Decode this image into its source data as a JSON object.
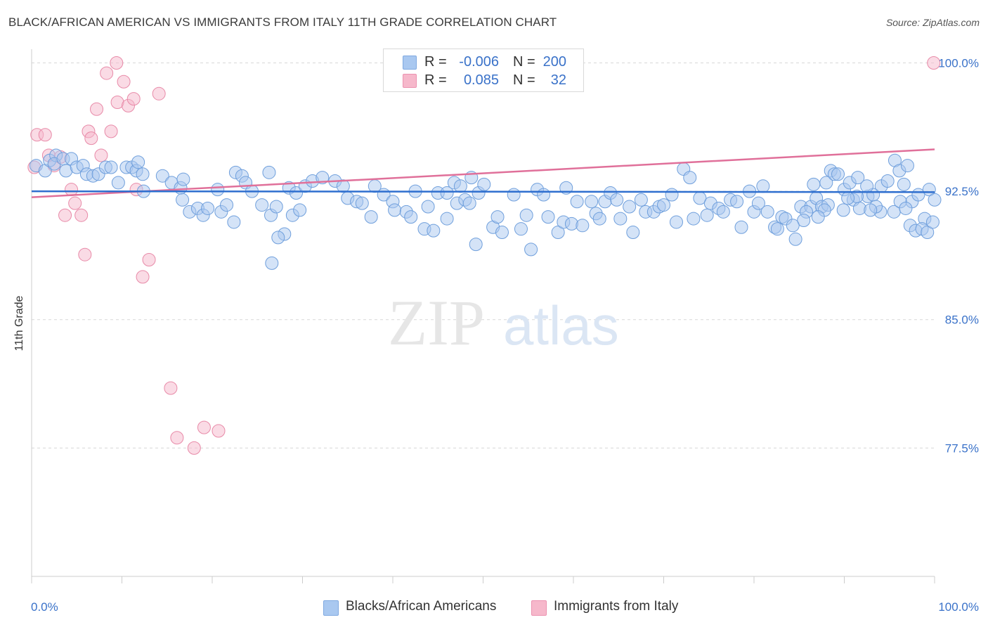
{
  "title": "BLACK/AFRICAN AMERICAN VS IMMIGRANTS FROM ITALY 11TH GRADE CORRELATION CHART",
  "source": "Source: ZipAtlas.com",
  "watermark": {
    "zip": "ZIP",
    "atlas": "atlas"
  },
  "legend": {
    "rows": [
      {
        "r_label": "R =",
        "r_value": "-0.006",
        "n_label": "N =",
        "n_value": "200",
        "color": "#a9c8f0"
      },
      {
        "r_label": "R =",
        "r_value": "0.085",
        "n_label": "N =",
        "n_value": "32",
        "color": "#f6b8cb"
      }
    ]
  },
  "colors": {
    "blue_fill": "#a9c8f0",
    "blue_stroke": "#6f9fdc",
    "blue_line": "#2f6fcf",
    "pink_fill": "#f6b8cb",
    "pink_stroke": "#e88aa8",
    "pink_line": "#e0709a",
    "axis_label": "#3a72c9",
    "grid": "#d8d8d8"
  },
  "chart_data": {
    "type": "scatter",
    "title": "BLACK/AFRICAN AMERICAN VS IMMIGRANTS FROM ITALY 11TH GRADE CORRELATION CHART",
    "xlabel": "",
    "ylabel": "11th Grade",
    "xlim": [
      0,
      100
    ],
    "ylim": [
      70.0,
      100.8
    ],
    "x_tick_labels": [
      "0.0%",
      "100.0%"
    ],
    "y_ticks": [
      77.5,
      85.0,
      92.5,
      100.0
    ],
    "y_tick_labels": [
      "77.5%",
      "85.0%",
      "92.5%",
      "100.0%"
    ],
    "grid": true,
    "legend_position": "top-center",
    "series": [
      {
        "name": "Blacks/African Americans",
        "trend": {
          "x": [
            0,
            100
          ],
          "y": [
            92.5,
            92.45
          ]
        },
        "points": [
          [
            0.5,
            94.0
          ],
          [
            1.5,
            93.7
          ],
          [
            2.0,
            94.3
          ],
          [
            2.7,
            94.6
          ],
          [
            2.5,
            94.1
          ],
          [
            3.5,
            94.4
          ],
          [
            3.8,
            93.7
          ],
          [
            4.4,
            94.4
          ],
          [
            5.0,
            93.9
          ],
          [
            5.7,
            94.0
          ],
          [
            6.1,
            93.5
          ],
          [
            6.8,
            93.4
          ],
          [
            7.4,
            93.5
          ],
          [
            8.2,
            93.9
          ],
          [
            8.8,
            93.9
          ],
          [
            9.6,
            93.0
          ],
          [
            10.5,
            93.9
          ],
          [
            11.1,
            93.9
          ],
          [
            11.6,
            93.7
          ],
          [
            11.8,
            94.2
          ],
          [
            12.3,
            93.5
          ],
          [
            12.4,
            92.5
          ],
          [
            14.5,
            93.4
          ],
          [
            15.5,
            93.0
          ],
          [
            16.5,
            92.7
          ],
          [
            16.8,
            93.2
          ],
          [
            16.7,
            92.0
          ],
          [
            17.5,
            91.3
          ],
          [
            18.4,
            91.5
          ],
          [
            19.0,
            91.1
          ],
          [
            19.5,
            91.5
          ],
          [
            21.0,
            91.3
          ],
          [
            21.6,
            91.7
          ],
          [
            20.6,
            92.6
          ],
          [
            22.6,
            93.6
          ],
          [
            23.3,
            93.4
          ],
          [
            23.7,
            93.0
          ],
          [
            22.4,
            90.7
          ],
          [
            24.4,
            92.5
          ],
          [
            25.5,
            91.7
          ],
          [
            26.5,
            91.1
          ],
          [
            27.1,
            91.6
          ],
          [
            26.3,
            93.6
          ],
          [
            28.5,
            92.7
          ],
          [
            29.3,
            92.4
          ],
          [
            28.0,
            90.0
          ],
          [
            27.3,
            89.8
          ],
          [
            26.6,
            88.3
          ],
          [
            28.9,
            91.1
          ],
          [
            29.7,
            91.4
          ],
          [
            30.3,
            92.8
          ],
          [
            31.1,
            93.1
          ],
          [
            32.2,
            93.3
          ],
          [
            33.6,
            93.1
          ],
          [
            34.5,
            92.8
          ],
          [
            35.0,
            92.1
          ],
          [
            36.0,
            91.9
          ],
          [
            36.6,
            91.8
          ],
          [
            37.6,
            91.0
          ],
          [
            38.0,
            92.8
          ],
          [
            39.0,
            92.3
          ],
          [
            40.0,
            91.9
          ],
          [
            40.2,
            91.4
          ],
          [
            41.5,
            91.3
          ],
          [
            42.5,
            92.5
          ],
          [
            42.0,
            91.0
          ],
          [
            43.5,
            90.3
          ],
          [
            43.9,
            91.6
          ],
          [
            44.5,
            90.2
          ],
          [
            45.0,
            92.4
          ],
          [
            46.0,
            90.9
          ],
          [
            47.1,
            91.8
          ],
          [
            46.0,
            92.4
          ],
          [
            46.8,
            93.0
          ],
          [
            47.5,
            92.8
          ],
          [
            48.0,
            92.0
          ],
          [
            48.7,
            93.3
          ],
          [
            49.5,
            92.4
          ],
          [
            48.5,
            91.8
          ],
          [
            49.2,
            89.4
          ],
          [
            50.1,
            92.9
          ],
          [
            51.1,
            90.4
          ],
          [
            51.6,
            91.0
          ],
          [
            52.1,
            90.1
          ],
          [
            53.4,
            92.3
          ],
          [
            54.2,
            90.3
          ],
          [
            54.8,
            91.1
          ],
          [
            55.3,
            89.1
          ],
          [
            56.0,
            92.6
          ],
          [
            56.7,
            92.3
          ],
          [
            57.2,
            91.0
          ],
          [
            58.3,
            90.1
          ],
          [
            58.9,
            90.7
          ],
          [
            59.2,
            92.7
          ],
          [
            59.8,
            90.6
          ],
          [
            60.4,
            91.9
          ],
          [
            61.0,
            90.5
          ],
          [
            62.0,
            91.9
          ],
          [
            62.5,
            91.2
          ],
          [
            62.9,
            90.9
          ],
          [
            63.5,
            91.9
          ],
          [
            64.1,
            92.4
          ],
          [
            64.8,
            92.0
          ],
          [
            65.2,
            90.9
          ],
          [
            66.2,
            91.6
          ],
          [
            66.6,
            90.1
          ],
          [
            67.5,
            92.0
          ],
          [
            68.0,
            91.3
          ],
          [
            68.9,
            91.3
          ],
          [
            69.5,
            91.6
          ],
          [
            70.0,
            91.7
          ],
          [
            70.9,
            92.3
          ],
          [
            71.4,
            90.7
          ],
          [
            72.2,
            93.8
          ],
          [
            72.9,
            93.3
          ],
          [
            73.3,
            90.9
          ],
          [
            74.0,
            92.1
          ],
          [
            74.8,
            91.1
          ],
          [
            75.2,
            91.8
          ],
          [
            76.1,
            91.5
          ],
          [
            76.6,
            91.3
          ],
          [
            77.4,
            92.0
          ],
          [
            78.1,
            91.9
          ],
          [
            78.6,
            90.4
          ],
          [
            79.5,
            92.5
          ],
          [
            80.0,
            91.3
          ],
          [
            80.5,
            91.8
          ],
          [
            81.0,
            92.8
          ],
          [
            81.5,
            91.3
          ],
          [
            82.3,
            90.4
          ],
          [
            82.6,
            90.3
          ],
          [
            83.1,
            91.0
          ],
          [
            83.5,
            90.9
          ],
          [
            84.6,
            89.7
          ],
          [
            85.2,
            91.6
          ],
          [
            86.3,
            91.6
          ],
          [
            86.9,
            92.1
          ],
          [
            87.5,
            91.6
          ],
          [
            88.0,
            93.0
          ],
          [
            88.5,
            93.7
          ],
          [
            88.9,
            93.5
          ],
          [
            89.3,
            93.5
          ],
          [
            90.0,
            92.6
          ],
          [
            90.6,
            93.0
          ],
          [
            91.0,
            92.0
          ],
          [
            91.5,
            93.3
          ],
          [
            91.7,
            91.5
          ],
          [
            92.6,
            92.2
          ],
          [
            93.2,
            92.3
          ],
          [
            94.1,
            92.8
          ],
          [
            94.8,
            93.1
          ],
          [
            95.6,
            94.3
          ],
          [
            96.1,
            93.7
          ],
          [
            96.6,
            92.9
          ],
          [
            97.0,
            94.0
          ],
          [
            97.5,
            91.9
          ],
          [
            98.2,
            92.3
          ],
          [
            98.9,
            90.9
          ],
          [
            99.4,
            92.6
          ],
          [
            100.0,
            92.0
          ],
          [
            95.5,
            91.3
          ],
          [
            96.2,
            91.9
          ],
          [
            96.8,
            91.5
          ],
          [
            97.3,
            90.5
          ],
          [
            97.9,
            90.2
          ],
          [
            98.6,
            90.3
          ],
          [
            99.2,
            90.1
          ],
          [
            99.8,
            90.7
          ],
          [
            94.0,
            91.3
          ],
          [
            93.5,
            91.6
          ],
          [
            92.9,
            91.4
          ],
          [
            92.5,
            92.8
          ],
          [
            91.4,
            92.2
          ],
          [
            90.4,
            92.1
          ],
          [
            89.9,
            91.4
          ],
          [
            88.2,
            91.7
          ],
          [
            87.8,
            91.4
          ],
          [
            87.1,
            91.0
          ],
          [
            86.6,
            92.9
          ],
          [
            85.8,
            91.3
          ],
          [
            85.5,
            90.8
          ],
          [
            84.3,
            90.5
          ]
        ]
      },
      {
        "name": "Immigrants from Italy",
        "trend": {
          "x": [
            0,
            100
          ],
          "y": [
            92.15,
            94.95
          ]
        },
        "points": [
          [
            0.3,
            93.9
          ],
          [
            0.6,
            95.8
          ],
          [
            1.5,
            95.8
          ],
          [
            1.9,
            94.6
          ],
          [
            2.5,
            94.0
          ],
          [
            3.2,
            94.5
          ],
          [
            3.7,
            91.1
          ],
          [
            4.4,
            92.6
          ],
          [
            4.8,
            91.8
          ],
          [
            5.5,
            91.1
          ],
          [
            5.9,
            88.8
          ],
          [
            6.3,
            96.0
          ],
          [
            6.6,
            95.6
          ],
          [
            7.2,
            97.3
          ],
          [
            7.7,
            94.6
          ],
          [
            8.3,
            99.4
          ],
          [
            8.8,
            96.0
          ],
          [
            9.5,
            97.7
          ],
          [
            10.2,
            98.9
          ],
          [
            10.7,
            97.5
          ],
          [
            11.3,
            97.9
          ],
          [
            11.6,
            92.6
          ],
          [
            12.3,
            87.5
          ],
          [
            13.0,
            88.5
          ],
          [
            14.1,
            98.2
          ],
          [
            15.4,
            81.0
          ],
          [
            16.1,
            78.1
          ],
          [
            18.0,
            77.5
          ],
          [
            19.1,
            78.7
          ],
          [
            20.7,
            78.5
          ],
          [
            9.4,
            100.0
          ],
          [
            99.9,
            100.0
          ]
        ]
      }
    ]
  },
  "bottom_legend": [
    {
      "label": "Blacks/African Americans",
      "color": "#a9c8f0"
    },
    {
      "label": "Immigrants from Italy",
      "color": "#f6b8cb"
    }
  ]
}
